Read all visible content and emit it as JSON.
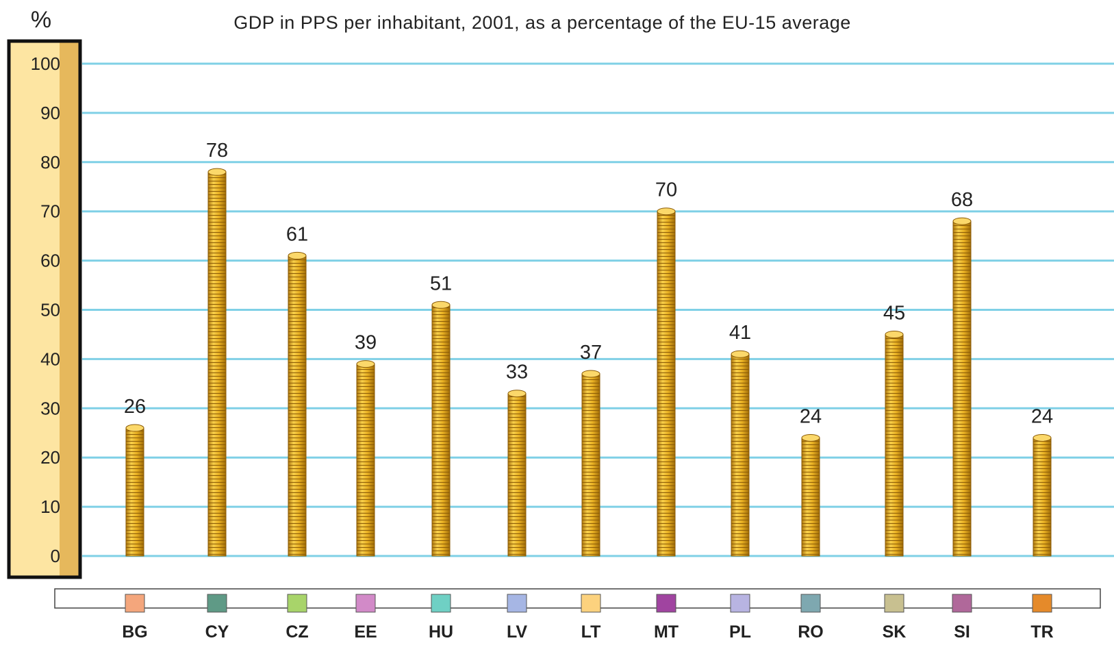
{
  "chart_data": {
    "type": "bar",
    "title": "GDP in PPS per inhabitant, 2001, as a percentage of the EU-15 average",
    "ylabel": "%",
    "xlabel": "",
    "ylim": [
      0,
      100
    ],
    "yticks": [
      0,
      10,
      20,
      30,
      40,
      50,
      60,
      70,
      80,
      90,
      100
    ],
    "grid": true,
    "legend": "bottom",
    "categories": [
      "BG",
      "CY",
      "CZ",
      "EE",
      "HU",
      "LV",
      "LT",
      "MT",
      "PL",
      "RO",
      "SK",
      "SI",
      "TR"
    ],
    "values": [
      26,
      78,
      61,
      39,
      51,
      33,
      37,
      70,
      41,
      24,
      45,
      68,
      24
    ],
    "data_labels": [
      "26",
      "78",
      "61",
      "39",
      "51",
      "33",
      "37",
      "70",
      "41",
      "24",
      "45",
      "68",
      "24"
    ],
    "legend_colors": [
      "#f4a67c",
      "#5f9a86",
      "#a8d46a",
      "#d28ac8",
      "#6fd0c4",
      "#a6b6e4",
      "#fcd27e",
      "#a044a0",
      "#b8b4e2",
      "#7ea8b0",
      "#c8c090",
      "#b0689a",
      "#e58a2a"
    ],
    "bar_color": "#e8b023",
    "grid_color": "#7fd0e6",
    "axis_band_colors": [
      "#fde5a2",
      "#e6b85c"
    ]
  }
}
